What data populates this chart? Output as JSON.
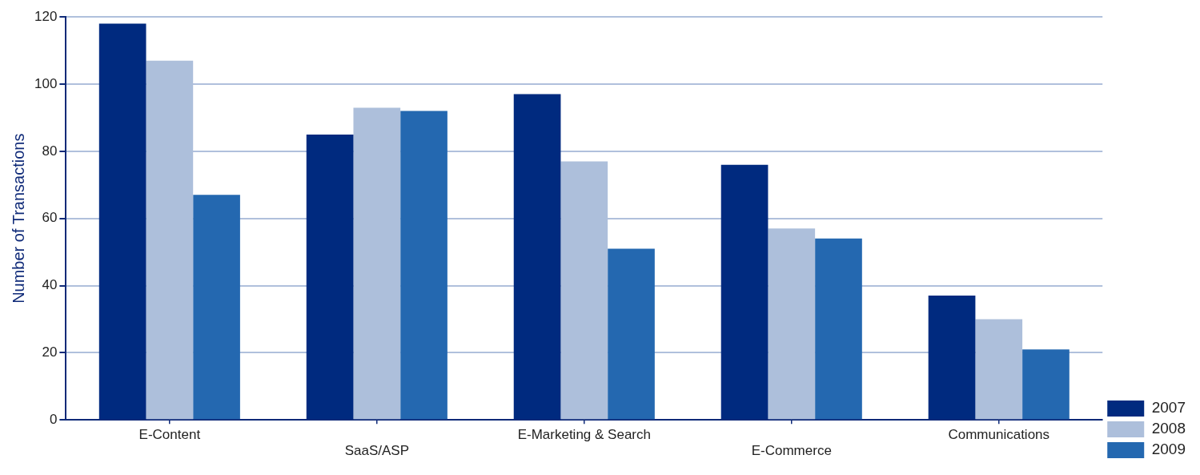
{
  "chart_data": {
    "type": "bar",
    "ylabel": "Number of Transactions",
    "categories": [
      "E-Content",
      "SaaS/ASP",
      "E-Marketing & Search",
      "E-Commerce",
      "Communications"
    ],
    "series": [
      {
        "name": "2007",
        "color": "#002a7f",
        "values": [
          118,
          85,
          97,
          76,
          37
        ]
      },
      {
        "name": "2008",
        "color": "#adbfdb",
        "values": [
          107,
          93,
          77,
          57,
          30
        ]
      },
      {
        "name": "2009",
        "color": "#2468b0",
        "values": [
          67,
          92,
          51,
          54,
          21
        ]
      }
    ],
    "ylim": [
      0,
      120
    ],
    "yticks": [
      0,
      20,
      40,
      60,
      80,
      100,
      120
    ],
    "grid": "y",
    "legend": "bottom right"
  }
}
